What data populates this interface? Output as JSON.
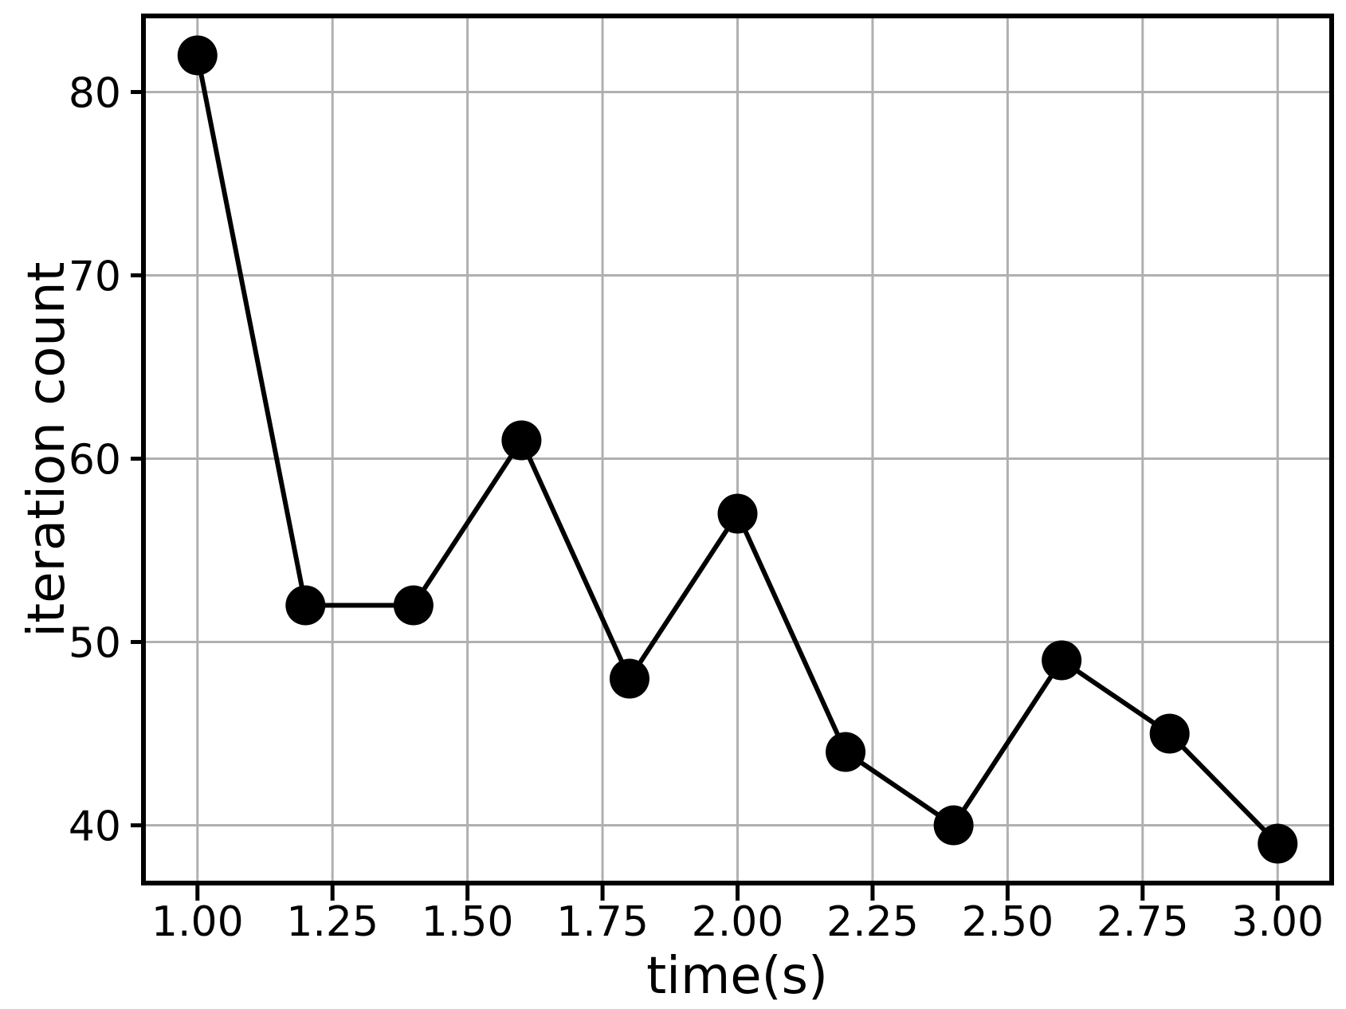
{
  "chart_data": {
    "type": "line",
    "title": "",
    "xlabel": "time(s)",
    "ylabel": "iteration count",
    "x": [
      1.0,
      1.2,
      1.4,
      1.6,
      1.8,
      2.0,
      2.2,
      2.4,
      2.6,
      2.8,
      3.0
    ],
    "values": [
      82,
      52,
      52,
      61,
      48,
      57,
      44,
      40,
      49,
      45,
      39
    ],
    "series": [
      {
        "name": "iteration count",
        "values": [
          82,
          52,
          52,
          61,
          48,
          57,
          44,
          40,
          49,
          45,
          39
        ]
      }
    ],
    "x_ticks": {
      "labels": [
        "1.00",
        "1.25",
        "1.50",
        "1.75",
        "2.00",
        "2.25",
        "2.50",
        "2.75",
        "3.00"
      ],
      "values": [
        1.0,
        1.25,
        1.5,
        1.75,
        2.0,
        2.25,
        2.5,
        2.75,
        3.0
      ]
    },
    "y_ticks": {
      "labels": [
        "40",
        "50",
        "60",
        "70",
        "80"
      ],
      "values": [
        40,
        50,
        60,
        70,
        80
      ]
    },
    "xlim": [
      0.9,
      3.1
    ],
    "ylim": [
      36.85,
      84.15
    ],
    "grid": true,
    "legend": "none",
    "marker": "filled-circle",
    "line_color": "#000000",
    "marker_color": "#000000",
    "grid_color": "#b0b0b0",
    "axis_color": "#000000",
    "background_color": "#ffffff"
  }
}
